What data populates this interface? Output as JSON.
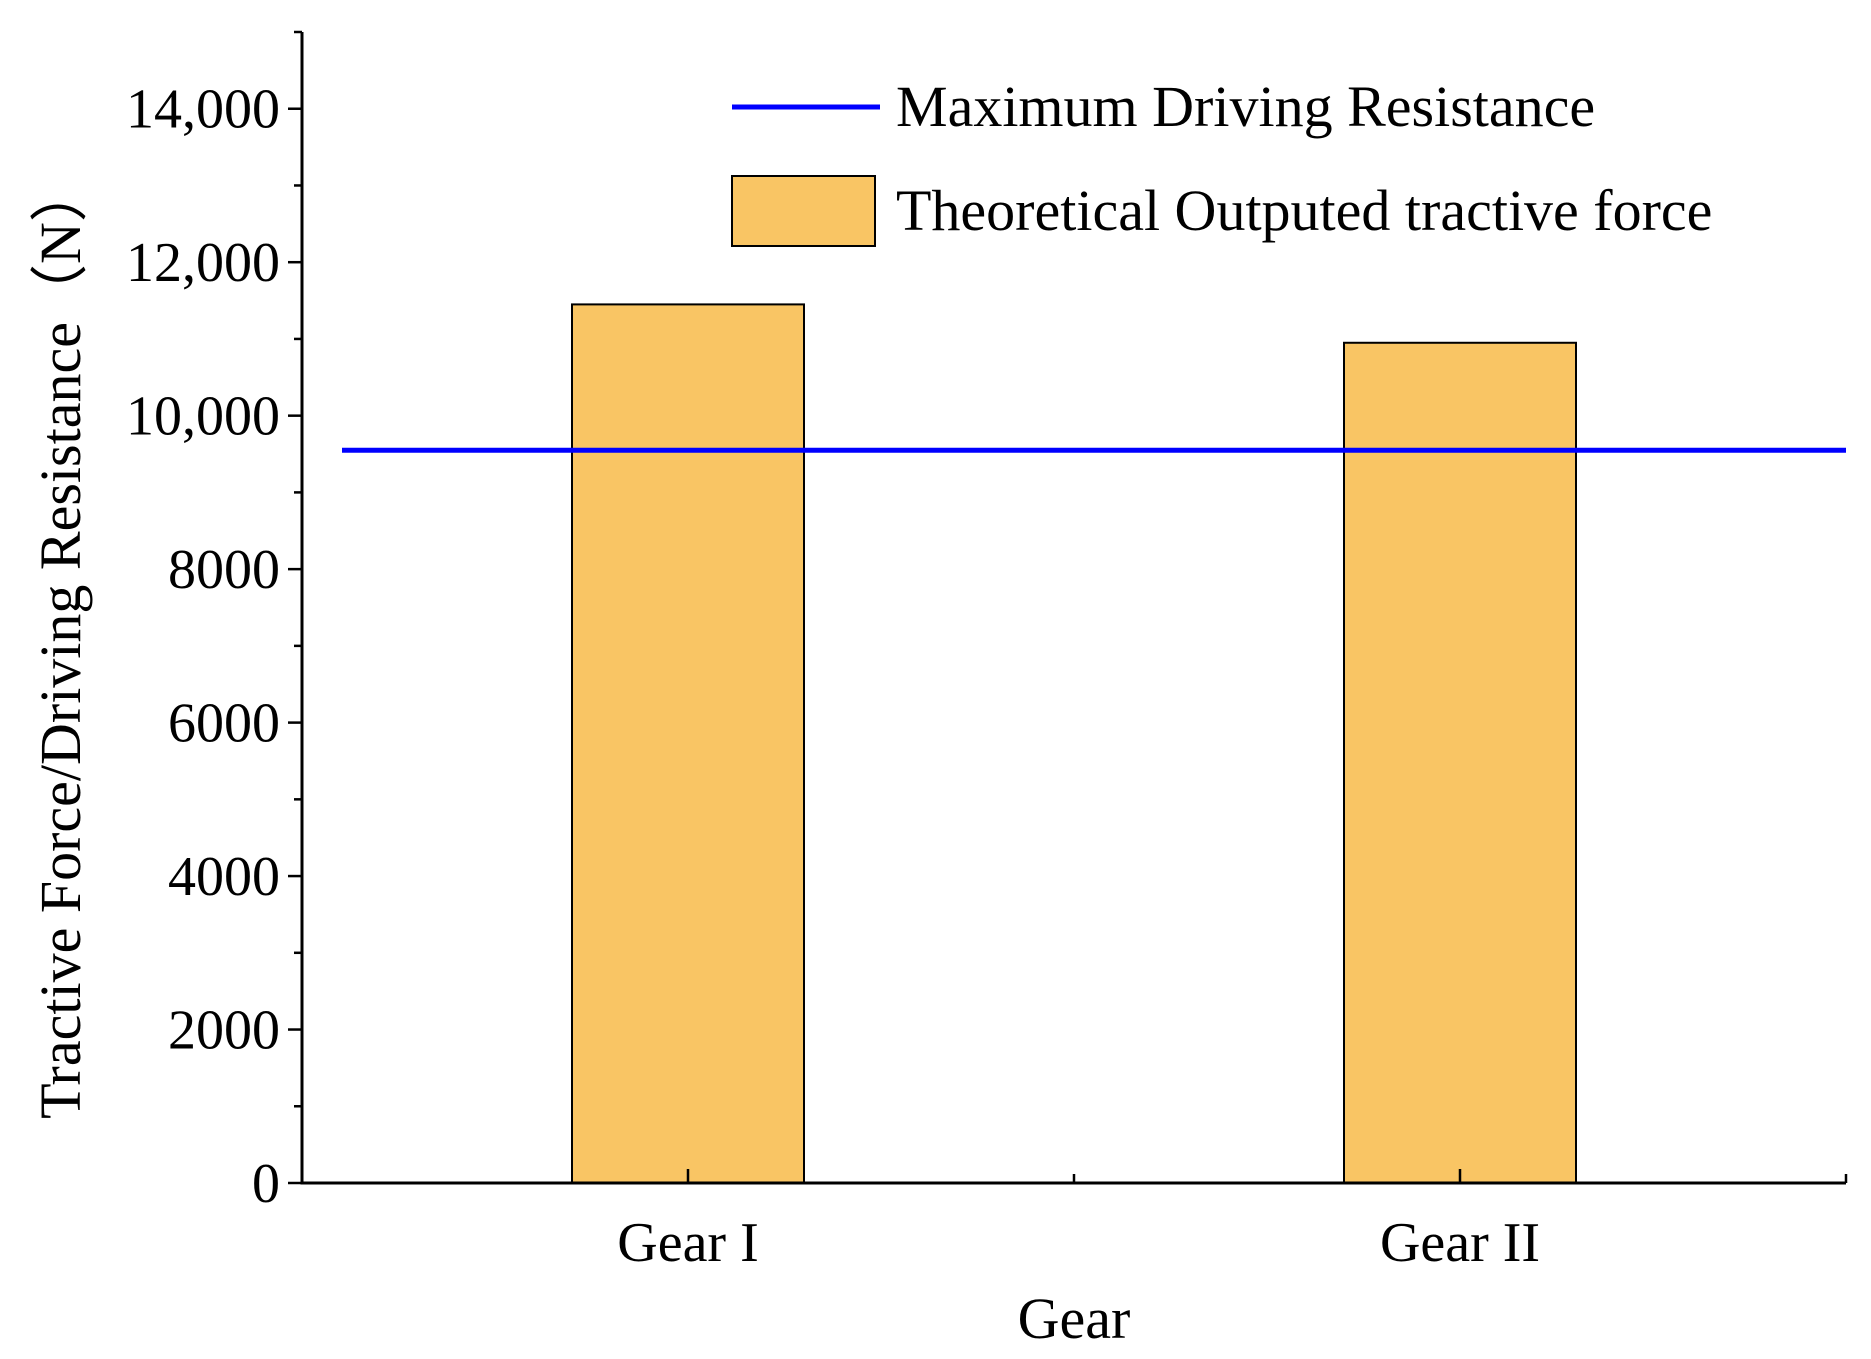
{
  "chart_data": {
    "type": "bar",
    "title": "",
    "xlabel": "Gear",
    "ylabel": "Tractive Force/Driving Resistance（N）",
    "categories": [
      "Gear I",
      "Gear II"
    ],
    "series": [
      {
        "name": "Theoretical Outputed tractive force",
        "values": [
          11450,
          10950
        ],
        "color": "#F9C564"
      }
    ],
    "reference_lines": [
      {
        "name": "Maximum Driving Resistance",
        "value": 9550,
        "color": "#0000FF"
      }
    ],
    "ylim": [
      0,
      15000
    ],
    "yticks": [
      0,
      2000,
      4000,
      6000,
      8000,
      10000,
      12000,
      14000
    ],
    "ytick_labels": [
      "0",
      "2000",
      "4000",
      "6000",
      "8000",
      "10,000",
      "12,000",
      "14,000"
    ],
    "legend_position": "top-right",
    "grid": false
  }
}
